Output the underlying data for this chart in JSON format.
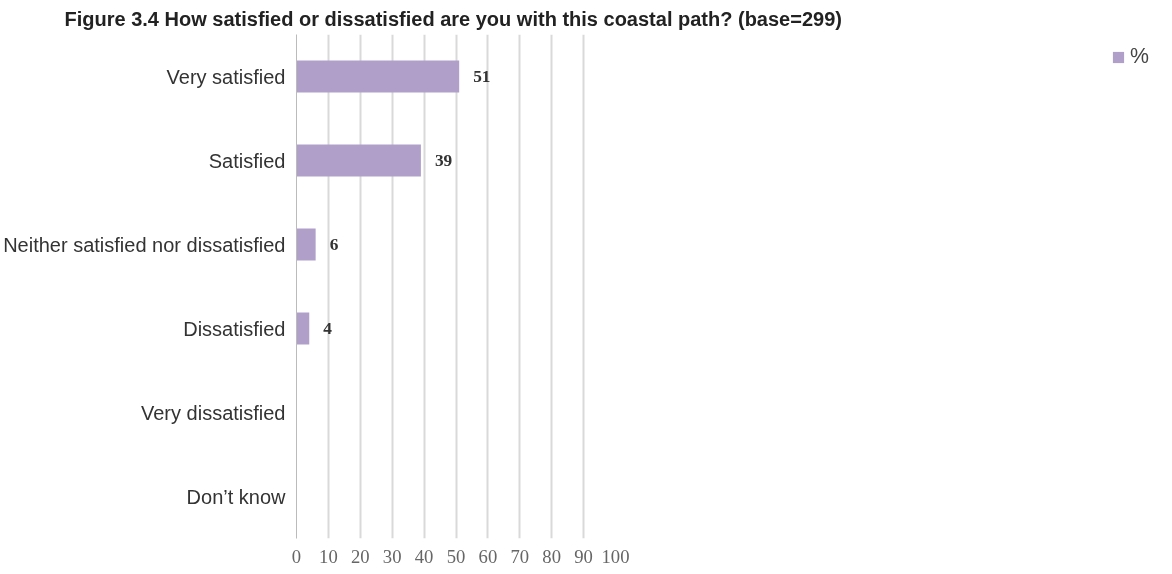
{
  "chart_data": {
    "type": "bar",
    "orientation": "horizontal",
    "title": "Figure 3.4  How satisfied or dissatisfied are you with this coastal path? (base=299)",
    "categories": [
      "Very satisfied",
      "Satisfied",
      "Neither satisfied nor dissatisfied",
      "Dissatisfied",
      "Very dissatisfied",
      "Don’t know"
    ],
    "series": [
      {
        "name": "%",
        "color": "#b09fc9",
        "values": [
          51,
          39,
          6,
          4,
          null,
          null
        ]
      }
    ],
    "xlim": [
      0,
      100
    ],
    "xticks": [
      0,
      10,
      20,
      30,
      40,
      50,
      60,
      70,
      80,
      90,
      100
    ],
    "grid": "x",
    "legend": "right",
    "data_labels": true
  }
}
